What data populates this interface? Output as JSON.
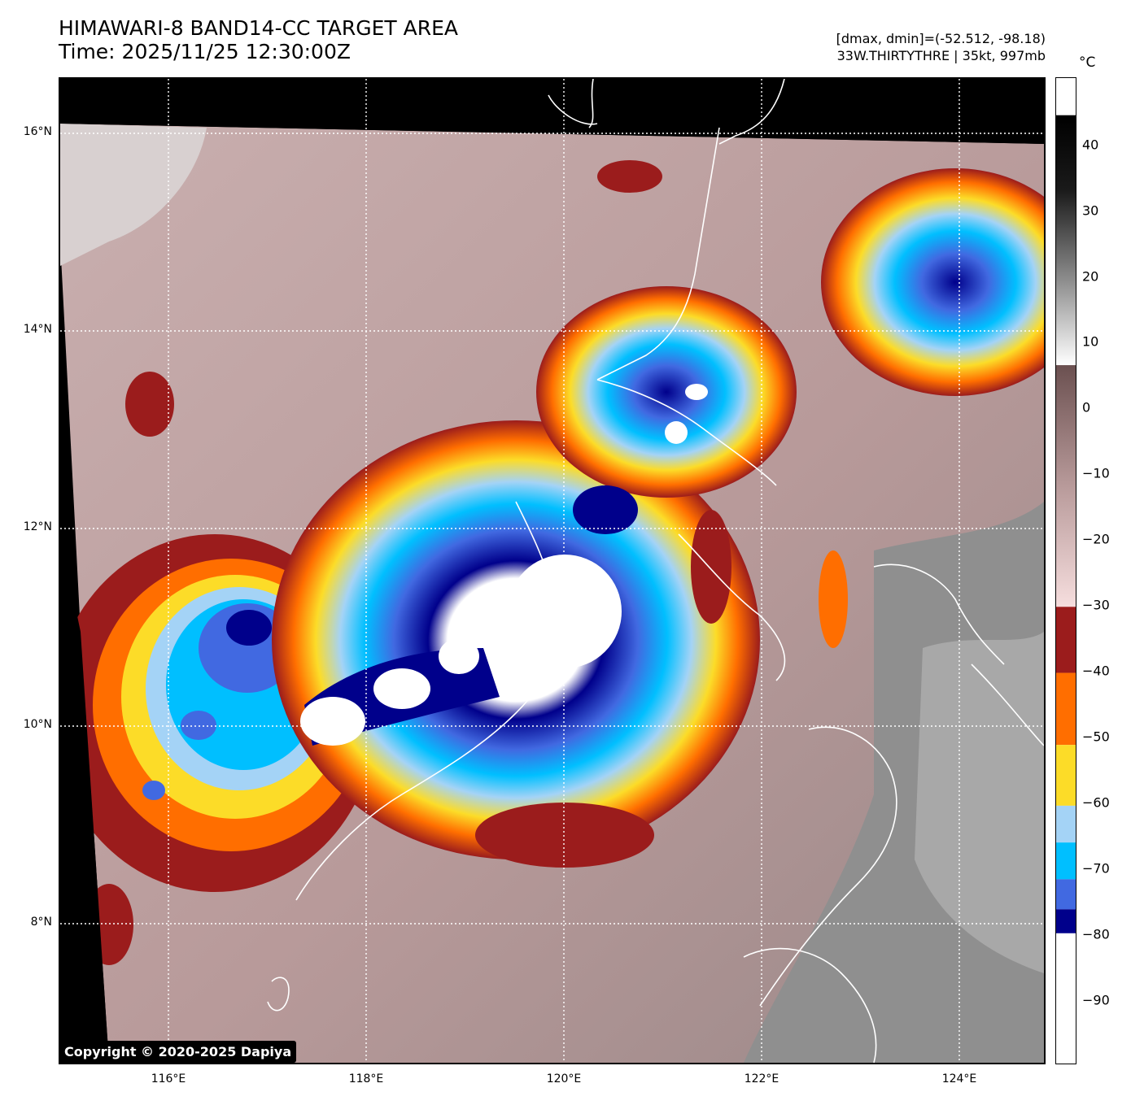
{
  "title": {
    "line1": "HIMAWARI-8 BAND14-CC TARGET AREA",
    "line2": "Time: 2025/11/25 12:30:00Z"
  },
  "info": {
    "line1": "[dmax, dmin]=(-52.512, -98.18)",
    "line2": "33W.THIRTYTHRE | 35kt, 997mb"
  },
  "colorbar": {
    "unit": "°C",
    "ticks": [
      "40",
      "30",
      "20",
      "10",
      "0",
      "−10",
      "−20",
      "−30",
      "−40",
      "−50",
      "−60",
      "−70",
      "−80",
      "−90"
    ],
    "bands": [
      {
        "color": "#ffffff",
        "label": "-90"
      },
      {
        "color": "#00008b",
        "label": "-80"
      },
      {
        "color": "#4169e1"
      },
      {
        "color": "#00bfff"
      },
      {
        "color": "#a4d3f6"
      },
      {
        "color": "#fcdc28"
      },
      {
        "color": "#ff6e00"
      },
      {
        "color": "#9b1c1c"
      }
    ]
  },
  "axes": {
    "lat_labels": [
      "16°N",
      "14°N",
      "12°N",
      "10°N",
      "8°N"
    ],
    "lon_labels": [
      "116°E",
      "118°E",
      "120°E",
      "122°E",
      "124°E"
    ]
  },
  "copyright": "Copyright © 2020-2025 Dapiya",
  "colors": {
    "clear_sky": "#bfa3a3",
    "warm_ground": "#8c8c8c",
    "land_outline": "#ffffff",
    "grid": "#ffffff"
  }
}
